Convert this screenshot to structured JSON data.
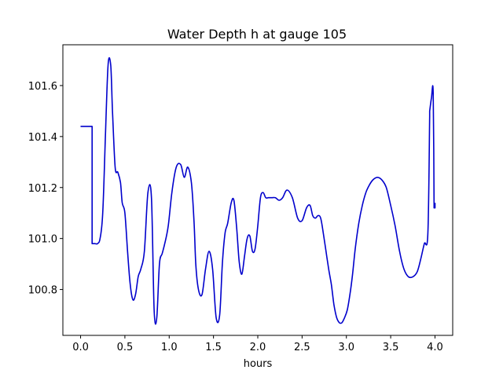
{
  "chart_data": {
    "type": "line",
    "title": "Water Depth h at gauge 105",
    "xlabel": "hours",
    "ylabel": "",
    "xlim": [
      -0.2,
      4.2
    ],
    "ylim": [
      100.62,
      101.76
    ],
    "xticks": [
      0.0,
      0.5,
      1.0,
      1.5,
      2.0,
      2.5,
      3.0,
      3.5,
      4.0
    ],
    "xtick_labels": [
      "0.0",
      "0.5",
      "1.0",
      "1.5",
      "2.0",
      "2.5",
      "3.0",
      "3.5",
      "4.0"
    ],
    "yticks": [
      100.8,
      101.0,
      101.2,
      101.4,
      101.6
    ],
    "ytick_labels": [
      "100.8",
      "101.0",
      "101.2",
      "101.4",
      "101.6"
    ],
    "grid": false,
    "legend": "none",
    "series": [
      {
        "color": "#0000cc",
        "x": [
          0.0,
          0.13,
          0.13,
          0.16,
          0.19,
          0.22,
          0.25,
          0.28,
          0.31,
          0.34,
          0.36,
          0.39,
          0.42,
          0.45,
          0.47,
          0.5,
          0.53,
          0.56,
          0.59,
          0.62,
          0.65,
          0.68,
          0.72,
          0.76,
          0.8,
          0.83,
          0.86,
          0.89,
          0.92,
          0.95,
          0.99,
          1.03,
          1.08,
          1.13,
          1.17,
          1.21,
          1.25,
          1.28,
          1.3,
          1.33,
          1.37,
          1.41,
          1.45,
          1.49,
          1.53,
          1.57,
          1.6,
          1.63,
          1.66,
          1.7,
          1.73,
          1.76,
          1.79,
          1.82,
          1.85,
          1.88,
          1.91,
          1.94,
          1.97,
          2.0,
          2.03,
          2.06,
          2.09,
          2.12,
          2.16,
          2.2,
          2.24,
          2.28,
          2.33,
          2.39,
          2.45,
          2.5,
          2.55,
          2.59,
          2.62,
          2.65,
          2.68,
          2.71,
          2.74,
          2.77,
          2.8,
          2.83,
          2.86,
          2.89,
          2.92,
          2.95,
          2.98,
          3.01,
          3.04,
          3.07,
          3.1,
          3.14,
          3.18,
          3.22,
          3.26,
          3.3,
          3.35,
          3.4,
          3.45,
          3.5,
          3.55,
          3.6,
          3.65,
          3.7,
          3.75,
          3.8,
          3.84,
          3.88,
          3.92,
          3.94,
          3.94,
          3.96,
          3.98,
          3.99,
          3.99,
          4.0,
          4.0
        ],
        "y": [
          101.44,
          101.44,
          100.98,
          100.98,
          100.98,
          101.0,
          101.1,
          101.4,
          101.68,
          101.68,
          101.5,
          101.28,
          101.26,
          101.22,
          101.14,
          101.1,
          100.95,
          100.82,
          100.76,
          100.78,
          100.85,
          100.88,
          100.95,
          101.18,
          101.16,
          100.72,
          100.69,
          100.9,
          100.94,
          100.98,
          101.05,
          101.18,
          101.28,
          101.29,
          101.24,
          101.28,
          101.22,
          101.07,
          100.9,
          100.8,
          100.78,
          100.88,
          100.95,
          100.88,
          100.69,
          100.7,
          100.9,
          101.02,
          101.06,
          101.14,
          101.15,
          101.05,
          100.91,
          100.86,
          100.93,
          101.0,
          101.01,
          100.95,
          100.96,
          101.05,
          101.16,
          101.18,
          101.16,
          101.16,
          101.16,
          101.16,
          101.15,
          101.16,
          101.19,
          101.16,
          101.08,
          101.07,
          101.12,
          101.13,
          101.09,
          101.08,
          101.09,
          101.08,
          101.02,
          100.95,
          100.88,
          100.82,
          100.74,
          100.69,
          100.67,
          100.67,
          100.69,
          100.72,
          100.78,
          100.86,
          100.96,
          101.06,
          101.13,
          101.18,
          101.21,
          101.23,
          101.24,
          101.23,
          101.2,
          101.13,
          101.05,
          100.95,
          100.88,
          100.85,
          100.85,
          100.87,
          100.92,
          100.98,
          101.02,
          101.48,
          101.5,
          101.55,
          101.57,
          101.12,
          101.14,
          101.12,
          101.14
        ]
      }
    ]
  }
}
